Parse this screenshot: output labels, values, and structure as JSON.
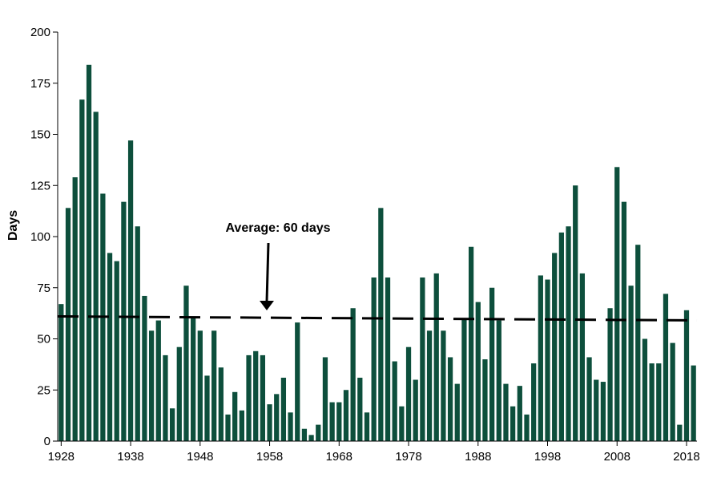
{
  "chart_data": {
    "type": "bar",
    "title": "",
    "xlabel": "",
    "ylabel": "Days",
    "ylim": [
      0,
      200
    ],
    "y_ticks": [
      0,
      25,
      50,
      75,
      100,
      125,
      150,
      175,
      200
    ],
    "x_tick_labels": [
      "1928",
      "1938",
      "1948",
      "1958",
      "1968",
      "1978",
      "1988",
      "1998",
      "2008",
      "2018"
    ],
    "x": [
      1928,
      1929,
      1930,
      1931,
      1932,
      1933,
      1934,
      1935,
      1936,
      1937,
      1938,
      1939,
      1940,
      1941,
      1942,
      1943,
      1944,
      1945,
      1946,
      1947,
      1948,
      1949,
      1950,
      1951,
      1952,
      1953,
      1954,
      1955,
      1956,
      1957,
      1958,
      1959,
      1960,
      1961,
      1962,
      1963,
      1964,
      1965,
      1966,
      1967,
      1968,
      1969,
      1970,
      1971,
      1972,
      1973,
      1974,
      1975,
      1976,
      1977,
      1978,
      1979,
      1980,
      1981,
      1982,
      1983,
      1984,
      1985,
      1986,
      1987,
      1988,
      1989,
      1990,
      1991,
      1992,
      1993,
      1994,
      1995,
      1996,
      1997,
      1998,
      1999,
      2000,
      2001,
      2002,
      2003,
      2004,
      2005,
      2006,
      2007,
      2008,
      2009,
      2010,
      2011,
      2012,
      2013,
      2014,
      2015,
      2016,
      2017,
      2018,
      2019
    ],
    "values": [
      67,
      114,
      129,
      167,
      184,
      161,
      121,
      92,
      88,
      117,
      147,
      105,
      71,
      54,
      59,
      42,
      16,
      46,
      76,
      60,
      54,
      32,
      54,
      36,
      13,
      24,
      15,
      42,
      44,
      42,
      18,
      23,
      31,
      14,
      58,
      6,
      3,
      8,
      41,
      19,
      19,
      25,
      65,
      31,
      14,
      80,
      114,
      80,
      39,
      17,
      46,
      30,
      80,
      54,
      82,
      54,
      41,
      28,
      60,
      95,
      68,
      40,
      75,
      59,
      28,
      17,
      27,
      13,
      38,
      81,
      79,
      92,
      102,
      105,
      125,
      82,
      41,
      30,
      29,
      65,
      134,
      117,
      76,
      96,
      50,
      38,
      38,
      72,
      48,
      8,
      64,
      37
    ],
    "bar_color": "#0d4f3c",
    "average": {
      "value": 60,
      "label": "Average: 60 days",
      "line_color": "#000000",
      "line_style": "dashed"
    },
    "grid": false,
    "legend": "none"
  }
}
